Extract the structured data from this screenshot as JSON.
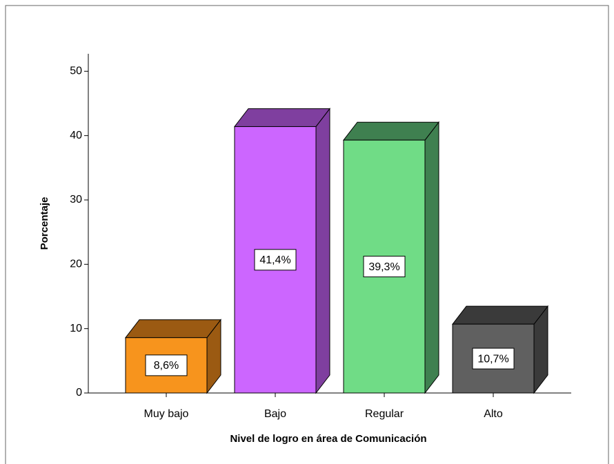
{
  "chart_data": {
    "type": "bar3d",
    "xlabel": "Nivel de logro en área de Comunicación",
    "ylabel": "Porcentaje",
    "categories": [
      "Muy bajo",
      "Bajo",
      "Regular",
      "Alto"
    ],
    "values": [
      8.6,
      41.4,
      39.3,
      10.7
    ],
    "value_labels": [
      "8,6%",
      "41,4%",
      "39,3%",
      "10,7%"
    ],
    "colors": [
      "#f7941d",
      "#cc66ff",
      "#70dc86",
      "#606060"
    ],
    "side_colors": [
      "#9b5a12",
      "#7f3f9f",
      "#3f8050",
      "#3a3a3a"
    ],
    "ylim": [
      0,
      52.5
    ],
    "yticks": [
      0,
      10,
      20,
      30,
      40,
      50
    ]
  }
}
